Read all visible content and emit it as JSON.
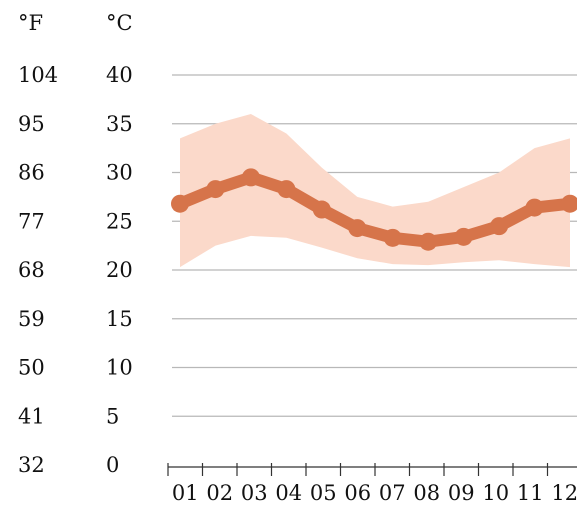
{
  "chart_data": {
    "type": "area",
    "units": {
      "fahrenheit": "°F",
      "celsius": "°C"
    },
    "categories": [
      "01",
      "02",
      "03",
      "04",
      "05",
      "06",
      "07",
      "08",
      "09",
      "10",
      "11",
      "12"
    ],
    "y_ticks_celsius": [
      "40",
      "35",
      "30",
      "25",
      "20",
      "15",
      "10",
      "5",
      "0"
    ],
    "y_ticks_fahrenheit": [
      "104",
      "95",
      "86",
      "77",
      "68",
      "59",
      "50",
      "41",
      "32"
    ],
    "ylim": [
      0,
      40
    ],
    "grid": true,
    "series": [
      {
        "role": "high",
        "values": [
          33.5,
          35,
          36,
          34,
          30.5,
          27.5,
          26.5,
          27,
          28.5,
          30,
          32.5,
          33.5
        ]
      },
      {
        "role": "average",
        "values": [
          26.8,
          28.3,
          29.5,
          28.3,
          26.2,
          24.3,
          23.3,
          22.9,
          23.4,
          24.5,
          26.4,
          26.8
        ]
      },
      {
        "role": "low",
        "values": [
          20.3,
          22.5,
          23.5,
          23.3,
          22.3,
          21.2,
          20.6,
          20.5,
          20.8,
          21,
          20.6,
          20.3
        ]
      }
    ],
    "colors": {
      "range_fill": "#fbd9ca",
      "average_line": "#d6744a",
      "grid": "#b8b8b8",
      "axis": "#333333"
    }
  }
}
